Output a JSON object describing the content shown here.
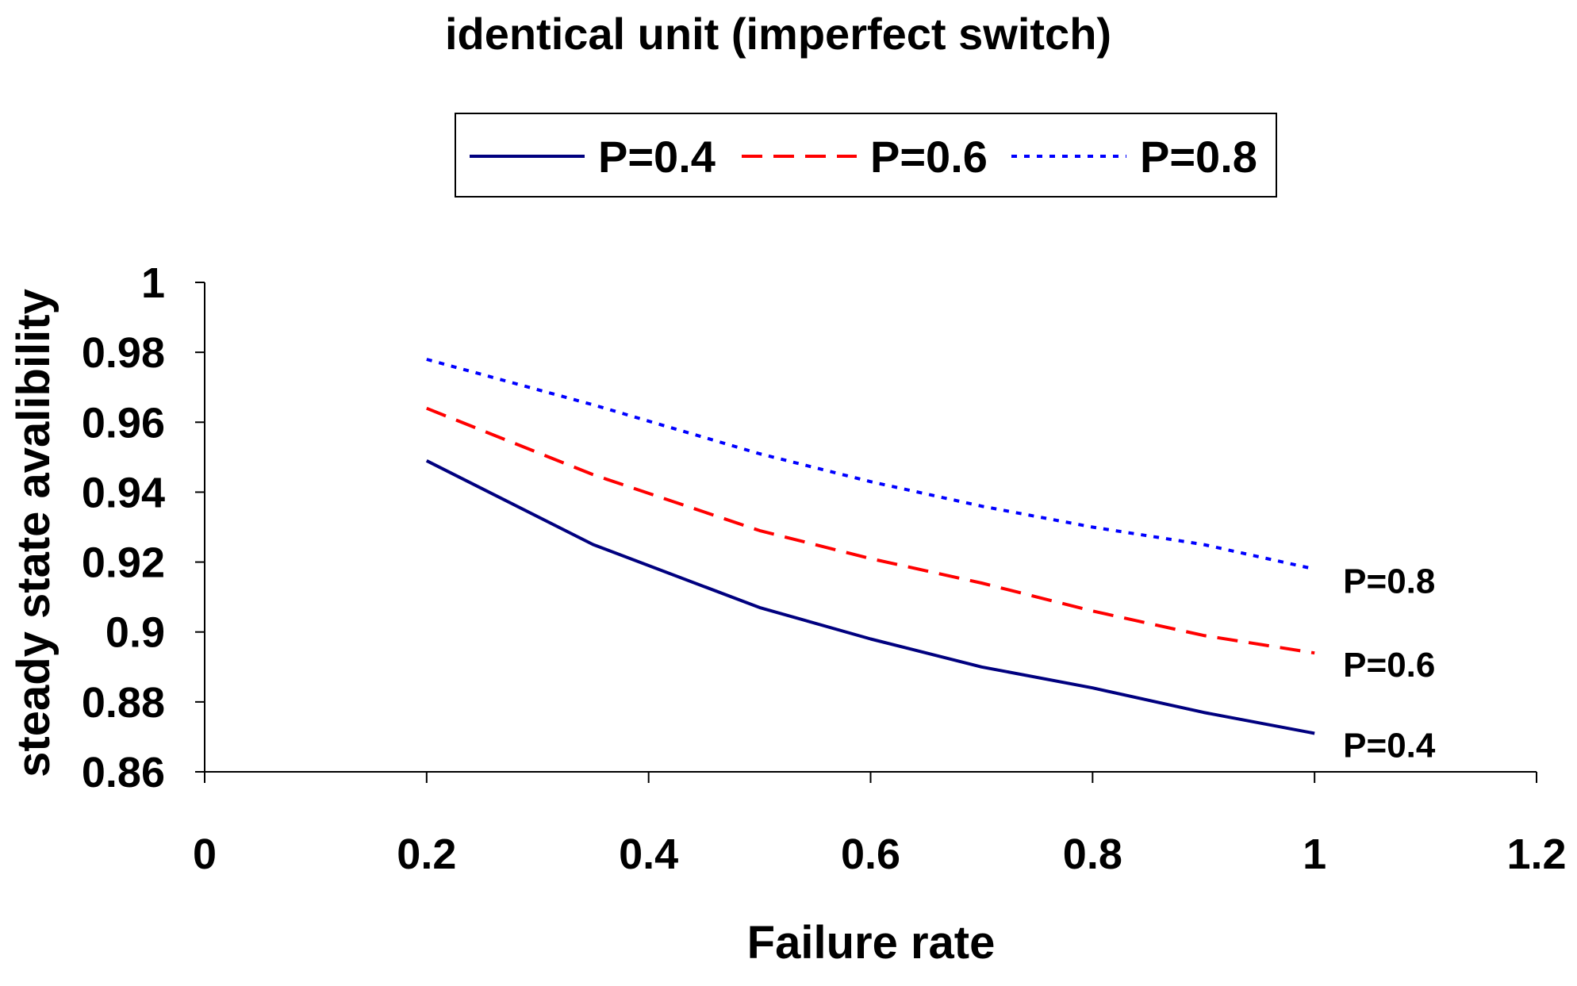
{
  "chart_data": {
    "type": "line",
    "title": "identical unit (imperfect switch)",
    "xlabel": "Failure rate",
    "ylabel": "steady state avalibility",
    "xlim": [
      0,
      1.2
    ],
    "ylim": [
      0.86,
      1
    ],
    "xticks": [
      "0",
      "0.2",
      "0.4",
      "0.6",
      "0.8",
      "1",
      "1.2"
    ],
    "yticks": [
      "0.86",
      "0.88",
      "0.9",
      "0.92",
      "0.94",
      "0.96",
      "0.98",
      "1"
    ],
    "legend_position": "top",
    "grid": false,
    "series": [
      {
        "name": "P=0.4",
        "end_label": "P=0.4",
        "color": "#00007f",
        "style": "solid",
        "x": [
          0.2,
          0.35,
          0.5,
          0.6,
          0.7,
          0.8,
          0.9,
          1.0
        ],
        "y": [
          0.949,
          0.925,
          0.907,
          0.898,
          0.89,
          0.884,
          0.877,
          0.871
        ]
      },
      {
        "name": "P=0.6",
        "end_label": "P=0.6",
        "color": "#ff0000",
        "style": "dashed",
        "x": [
          0.2,
          0.35,
          0.5,
          0.6,
          0.7,
          0.8,
          0.9,
          1.0
        ],
        "y": [
          0.964,
          0.945,
          0.929,
          0.921,
          0.914,
          0.906,
          0.899,
          0.894
        ]
      },
      {
        "name": "P=0.8",
        "end_label": "P=0.8",
        "color": "#0000ff",
        "style": "dotted",
        "x": [
          0.2,
          0.35,
          0.5,
          0.6,
          0.7,
          0.8,
          0.9,
          1.0
        ],
        "y": [
          0.978,
          0.965,
          0.951,
          0.943,
          0.936,
          0.93,
          0.925,
          0.918
        ]
      }
    ]
  }
}
